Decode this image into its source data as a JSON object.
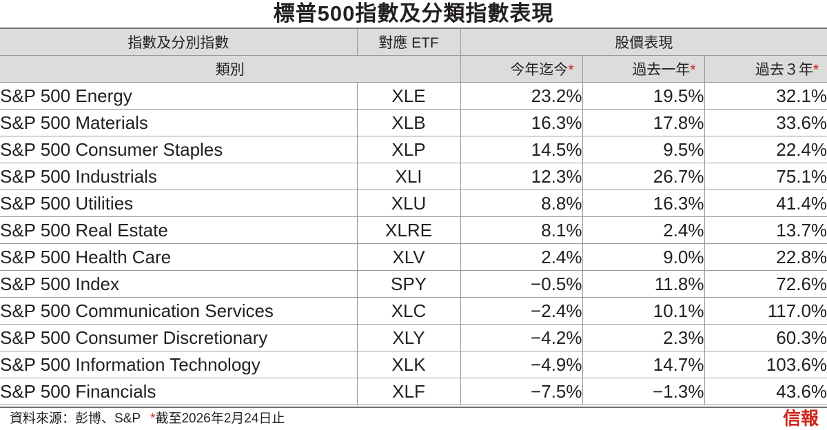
{
  "title": "標普500指數及分類指數表現",
  "header": {
    "col_index": "指數及分別指數",
    "col_etf": "對應 ETF",
    "col_perf": "股價表現",
    "sub_category": "類別",
    "sub_ytd": "今年迄今",
    "sub_1y": "過去一年",
    "sub_3y": "過去３年",
    "asterisk": "*"
  },
  "chart_data": {
    "type": "table",
    "title": "標普500指數及分類指數表現",
    "columns": [
      "指數及分別指數",
      "對應 ETF",
      "今年迄今",
      "過去一年",
      "過去３年"
    ],
    "rows": [
      {
        "name": "S&P 500 Energy",
        "etf": "XLE",
        "ytd": "23.2%",
        "y1": "19.5%",
        "y3": "32.1%"
      },
      {
        "name": "S&P 500 Materials",
        "etf": "XLB",
        "ytd": "16.3%",
        "y1": "17.8%",
        "y3": "33.6%"
      },
      {
        "name": "S&P 500 Consumer Staples",
        "etf": "XLP",
        "ytd": "14.5%",
        "y1": "9.5%",
        "y3": "22.4%"
      },
      {
        "name": "S&P 500 Industrials",
        "etf": "XLI",
        "ytd": "12.3%",
        "y1": "26.7%",
        "y3": "75.1%"
      },
      {
        "name": "S&P 500 Utilities",
        "etf": "XLU",
        "ytd": "8.8%",
        "y1": "16.3%",
        "y3": "41.4%"
      },
      {
        "name": "S&P 500 Real Estate",
        "etf": "XLRE",
        "ytd": "8.1%",
        "y1": "2.4%",
        "y3": "13.7%"
      },
      {
        "name": "S&P 500 Health Care",
        "etf": "XLV",
        "ytd": "2.4%",
        "y1": "9.0%",
        "y3": "22.8%"
      },
      {
        "name": "S&P 500 Index",
        "etf": "SPY",
        "ytd": "−0.5%",
        "y1": "11.8%",
        "y3": "72.6%"
      },
      {
        "name": "S&P 500 Communication Services",
        "etf": "XLC",
        "ytd": "−2.4%",
        "y1": "10.1%",
        "y3": "117.0%"
      },
      {
        "name": "S&P 500 Consumer Discretionary",
        "etf": "XLY",
        "ytd": "−4.2%",
        "y1": "2.3%",
        "y3": "60.3%"
      },
      {
        "name": "S&P 500 Information Technology",
        "etf": "XLK",
        "ytd": "−4.9%",
        "y1": "14.7%",
        "y3": "103.6%"
      },
      {
        "name": "S&P 500 Financials",
        "etf": "XLF",
        "ytd": "−7.5%",
        "y1": "−1.3%",
        "y3": "43.6%"
      }
    ]
  },
  "footer": {
    "source": "資料來源：彭博、S&P",
    "note": "截至2026年2月24日止",
    "logo": "信報"
  },
  "colors": {
    "header_bg": "#dcdcdc",
    "asterisk_red": "#d0241b",
    "logo_red": "#d0241b"
  }
}
